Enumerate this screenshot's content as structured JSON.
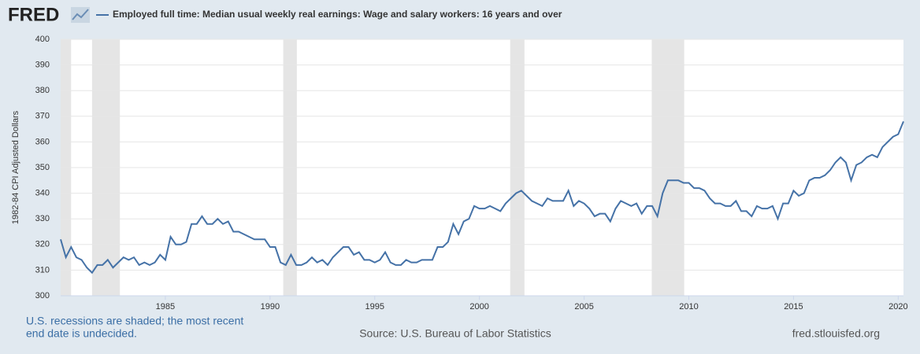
{
  "chart_data": {
    "type": "line",
    "logo": "FRED",
    "ylabel": "1982-84 CPI Adjusted Dollars",
    "notes": [
      "U.S. recessions are shaded; the most recent",
      "end date is undecided."
    ],
    "source": "Source: U.S. Bureau of Labor Statistics",
    "site": "fred.stlouisfed.org",
    "x": [
      1980,
      1980.25,
      1980.5,
      1980.75,
      1981,
      1981.25,
      1981.5,
      1981.75,
      1982,
      1982.25,
      1982.5,
      1982.75,
      1983,
      1983.25,
      1983.5,
      1983.75,
      1984,
      1984.25,
      1984.5,
      1984.75,
      1985,
      1985.25,
      1985.5,
      1985.75,
      1986,
      1986.25,
      1986.5,
      1986.75,
      1987,
      1987.25,
      1987.5,
      1987.75,
      1988,
      1988.25,
      1988.5,
      1988.75,
      1989,
      1989.25,
      1989.5,
      1989.75,
      1990,
      1990.25,
      1990.5,
      1990.75,
      1991,
      1991.25,
      1991.5,
      1991.75,
      1992,
      1992.25,
      1992.5,
      1992.75,
      1993,
      1993.25,
      1993.5,
      1993.75,
      1994,
      1994.25,
      1994.5,
      1994.75,
      1995,
      1995.25,
      1995.5,
      1995.75,
      1996,
      1996.25,
      1996.5,
      1996.75,
      1997,
      1997.25,
      1997.5,
      1997.75,
      1998,
      1998.25,
      1998.5,
      1998.75,
      1999,
      1999.25,
      1999.5,
      1999.75,
      2000,
      2000.25,
      2000.5,
      2000.75,
      2001,
      2001.25,
      2001.5,
      2001.75,
      2002,
      2002.25,
      2002.5,
      2002.75,
      2003,
      2003.25,
      2003.5,
      2003.75,
      2004,
      2004.25,
      2004.5,
      2004.75,
      2005,
      2005.25,
      2005.5,
      2005.75,
      2006,
      2006.25,
      2006.5,
      2006.75,
      2007,
      2007.25,
      2007.5,
      2007.75,
      2008,
      2008.25,
      2008.5,
      2008.75,
      2009,
      2009.25,
      2009.5,
      2009.75,
      2010,
      2010.25,
      2010.5,
      2010.75,
      2011,
      2011.25,
      2011.5,
      2011.75,
      2012,
      2012.25,
      2012.5,
      2012.75,
      2013,
      2013.25,
      2013.5,
      2013.75,
      2014,
      2014.25,
      2014.5,
      2014.75,
      2015,
      2015.25,
      2015.5,
      2015.75,
      2016,
      2016.25,
      2016.5,
      2016.75,
      2017,
      2017.25,
      2017.5,
      2017.75,
      2018,
      2018.25,
      2018.5,
      2018.75,
      2019,
      2019.25,
      2019.5,
      2019.75,
      2020,
      2020.25
    ],
    "series": [
      {
        "name": "Employed full time: Median usual weekly real earnings: Wage and salary workers: 16 years and over",
        "color": "#4572a7",
        "values": [
          322,
          315,
          319,
          315,
          314,
          311,
          309,
          312,
          312,
          314,
          311,
          313,
          315,
          314,
          315,
          312,
          313,
          312,
          313,
          316,
          314,
          323,
          320,
          320,
          321,
          328,
          328,
          331,
          328,
          328,
          330,
          328,
          329,
          325,
          325,
          324,
          323,
          322,
          322,
          322,
          319,
          319,
          313,
          312,
          316,
          312,
          312,
          313,
          315,
          313,
          314,
          312,
          315,
          317,
          319,
          319,
          316,
          317,
          314,
          314,
          313,
          314,
          317,
          313,
          312,
          312,
          314,
          313,
          313,
          314,
          314,
          314,
          319,
          319,
          321,
          328,
          324,
          329,
          330,
          335,
          334,
          334,
          335,
          334,
          333,
          336,
          338,
          340,
          341,
          339,
          337,
          336,
          335,
          338,
          337,
          337,
          337,
          341,
          335,
          337,
          336,
          334,
          331,
          332,
          332,
          329,
          334,
          337,
          336,
          335,
          336,
          332,
          335,
          335,
          331,
          340,
          345,
          345,
          345,
          344,
          344,
          342,
          342,
          341,
          338,
          336,
          336,
          335,
          335,
          337,
          333,
          333,
          331,
          335,
          334,
          334,
          335,
          330,
          336,
          336,
          341,
          339,
          340,
          345,
          346,
          346,
          347,
          349,
          352,
          354,
          352,
          345,
          351,
          352,
          354,
          355,
          354,
          358,
          360,
          362,
          363,
          368
        ]
      }
    ],
    "recessions": [
      [
        1980,
        1980.5
      ],
      [
        1981.5,
        1982.83
      ],
      [
        1990.63,
        1991.28
      ],
      [
        2001.47,
        2002.15
      ],
      [
        2008.23,
        2009.78
      ]
    ],
    "xlim": [
      1980,
      2020.25
    ],
    "xticks": [
      1985,
      1990,
      1995,
      2000,
      2005,
      2010,
      2015,
      2020
    ],
    "ylim": [
      300,
      400
    ],
    "yticks": [
      300,
      310,
      320,
      330,
      340,
      350,
      360,
      370,
      380,
      390,
      400
    ],
    "grid": true
  }
}
